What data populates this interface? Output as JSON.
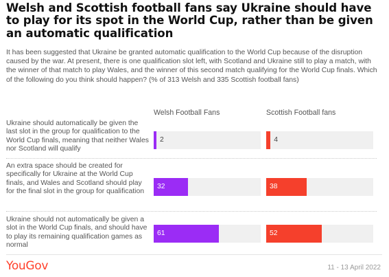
{
  "title": "Welsh and Scottish football fans say Ukraine should have to play for its spot in the World Cup, rather than be given an automatic qualification",
  "subtitle": "It has been suggested that Ukraine be granted automatic qualification to the World Cup because of the disruption caused by the war. At present, there is one qualification slot left, with Scotland and Ukraine still to play a match, with the winner of that match to play Wales, and the winner of this second match qualifying for the World Cup finals. Which of the following do you think should happen? (% of 313 Welsh and 335 Scottish football fans)",
  "logo": "YouGov",
  "date": "11 - 13 April 2022",
  "colors": {
    "welsh": "#9b2cf5",
    "scottish": "#f5402c",
    "track": "#f0f0f0",
    "brand": "#ff412c"
  },
  "chart_data": {
    "type": "bar",
    "orientation": "horizontal",
    "title": "Welsh and Scottish football fans say Ukraine should have to play for its spot in the World Cup, rather than be given an automatic qualification",
    "xlim": [
      0,
      100
    ],
    "categories": [
      "Ukraine should automatically be given the last slot in the group for qualification to the World Cup finals, meaning that neither Wales nor Scotland will qualify",
      "An extra space should be created for specifically for Ukraine at the World Cup finals, and Wales and Scotland should play for the final slot in the group for qualification",
      "Ukraine should not automatically be given a slot in the World Cup finals, and should have to play its remaining qualification games as normal"
    ],
    "series": [
      {
        "name": "Welsh Football Fans",
        "values": [
          2,
          32,
          61
        ]
      },
      {
        "name": "Scottish Football fans",
        "values": [
          4,
          38,
          52
        ]
      }
    ]
  }
}
